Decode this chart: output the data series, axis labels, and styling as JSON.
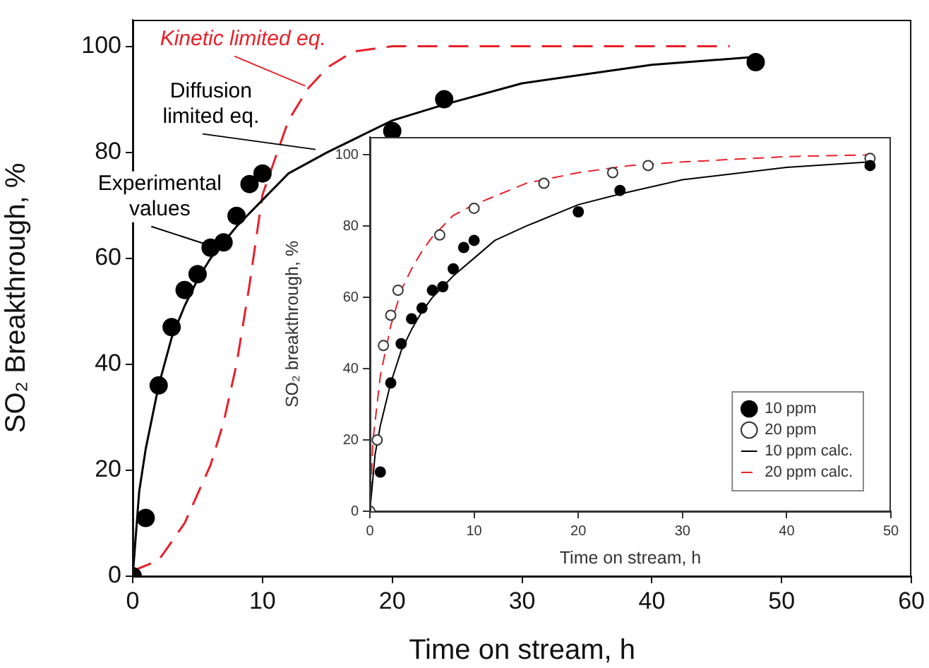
{
  "chart_data": [
    {
      "type": "scatter",
      "xlabel": "Time on stream, h",
      "ylabel": "SO₂ Breakthrough, %",
      "xlim": [
        0,
        60
      ],
      "xticks": [
        0,
        10,
        20,
        30,
        40,
        50,
        60
      ],
      "ylim": [
        0,
        105
      ],
      "yticks": [
        0,
        20,
        40,
        60,
        80,
        100
      ],
      "legend": false,
      "series": [
        {
          "type": "scatter",
          "color": "#000000",
          "marker": "circle",
          "x": [
            0,
            1,
            2,
            3,
            4,
            5,
            6,
            7,
            8,
            9,
            10,
            20,
            24,
            48
          ],
          "values": [
            0,
            11,
            36,
            47,
            54,
            57,
            62,
            63,
            68,
            74,
            76,
            84,
            90,
            97
          ]
        },
        {
          "type": "line",
          "color": "#000000",
          "marker": "none",
          "line_style": "solid",
          "x": [
            0,
            0.5,
            1,
            2,
            3,
            4,
            5,
            6,
            7,
            8,
            10,
            12,
            15,
            20,
            24,
            30,
            40,
            48
          ],
          "values": [
            0,
            16,
            24,
            36,
            45,
            51,
            56,
            60,
            63,
            66,
            71,
            76,
            80,
            86,
            89,
            93,
            96.5,
            98
          ]
        },
        {
          "type": "line",
          "color": "#e8202a",
          "marker": "none",
          "line_style": "dashed",
          "x": [
            0,
            2,
            4,
            6,
            7,
            8,
            9,
            10,
            11,
            12,
            13.5,
            15,
            17,
            20,
            30,
            46
          ],
          "values": [
            1,
            3,
            10,
            21,
            29,
            40,
            55,
            72,
            79,
            86,
            92,
            96,
            99,
            100,
            100,
            100
          ]
        }
      ],
      "annotations": [
        {
          "text": "Kinetic limited eq.",
          "x": 13.5,
          "y": 92
        },
        {
          "text": "Diffusion limited eq.",
          "x": 14.3,
          "y": 80
        },
        {
          "text": "Experimental values",
          "x": 6,
          "y": 62
        }
      ]
    },
    {
      "type": "scatter",
      "xlabel": "Time on stream, h",
      "ylabel": "SO₂ breakthrough, %",
      "xlim": [
        0,
        50
      ],
      "xticks": [
        0,
        10,
        20,
        30,
        40,
        50
      ],
      "ylim": [
        0,
        105
      ],
      "yticks": [
        0,
        20,
        40,
        60,
        80,
        100
      ],
      "legend": "bottom right",
      "series": [
        {
          "name": "10 ppm",
          "type": "scatter",
          "color": "#000000",
          "marker": "circle",
          "x": [
            1,
            2,
            3,
            4,
            5,
            6,
            7,
            8,
            9,
            10,
            20,
            24,
            48
          ],
          "values": [
            11,
            36,
            47,
            54,
            57,
            62,
            63,
            68,
            74,
            76,
            84,
            90,
            97
          ]
        },
        {
          "name": "20 ppm",
          "type": "scatter",
          "color": "#ffffff",
          "marker": "circle",
          "x": [
            0,
            0.7,
            1.3,
            2,
            2.7,
            6.7,
            10,
            16.7,
            23.3,
            26.7,
            48
          ],
          "values": [
            0,
            20,
            46.5,
            55,
            62,
            77.5,
            85,
            92,
            95,
            97,
            99
          ]
        },
        {
          "name": "10 ppm calc.",
          "type": "line",
          "color": "#000000",
          "marker": "none",
          "line_style": "solid",
          "x": [
            0,
            0.5,
            1,
            2,
            3,
            4,
            5,
            6,
            7,
            8,
            10,
            12,
            15,
            20,
            24,
            30,
            40,
            48
          ],
          "values": [
            0,
            16,
            24,
            36,
            45,
            51,
            56,
            60,
            63,
            66,
            71,
            76,
            80,
            86,
            89,
            93,
            96.5,
            98
          ]
        },
        {
          "name": "20 ppm calc.",
          "type": "line",
          "color": "#e8202a",
          "marker": "none",
          "line_style": "dashed",
          "x": [
            0,
            0.3,
            1,
            2,
            3,
            4,
            5,
            6,
            7,
            8,
            10,
            15,
            20,
            25,
            30,
            40,
            48
          ],
          "values": [
            0,
            20,
            38,
            52,
            62,
            68,
            73,
            77,
            80,
            83,
            86,
            92,
            95,
            97,
            98,
            99.5,
            100
          ]
        }
      ]
    }
  ]
}
